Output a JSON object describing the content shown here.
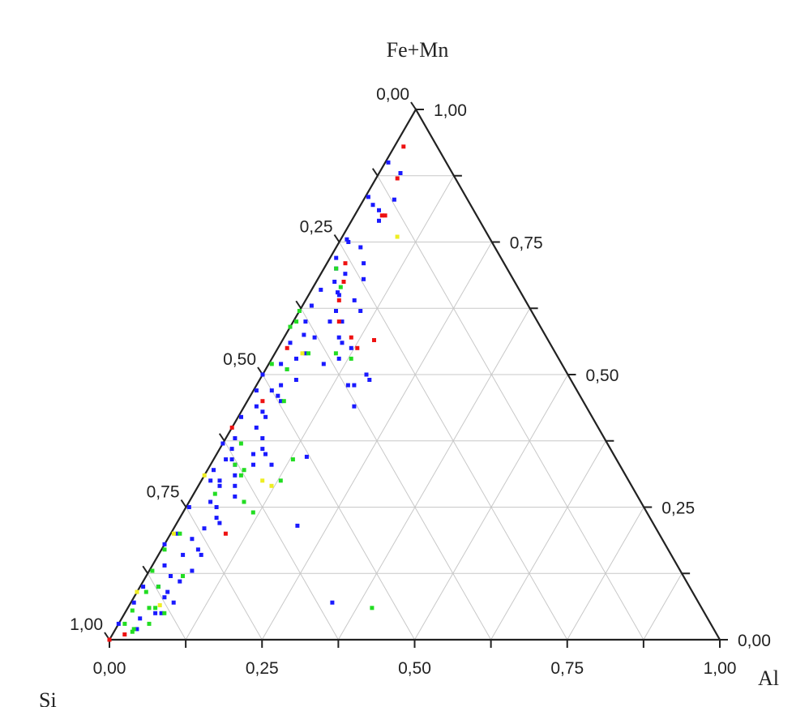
{
  "chart_data": {
    "type": "scatter",
    "subtype": "ternary",
    "grid": true,
    "axis_labels": {
      "top": "Fe+Mn",
      "right": "Al",
      "left": "Si"
    },
    "left_ticks": [
      "0,00",
      "0,25",
      "0,50",
      "0,75",
      "1,00"
    ],
    "right_ticks": [
      "1,00",
      "0,75",
      "0,50",
      "0,25",
      "0,00"
    ],
    "bottom_ticks": [
      "0,00",
      "0,25",
      "0,50",
      "0,75",
      "1,00"
    ],
    "colors": {
      "blue": "#1a1aff",
      "green": "#22dd22",
      "red": "#ee1111",
      "yellow": "#eeee22"
    },
    "series": [
      {
        "color_key": "blue",
        "points": [
          [
            0.005,
            0.9
          ],
          [
            0.035,
            0.88
          ],
          [
            0.005,
            0.835
          ],
          [
            0.01,
            0.755
          ],
          [
            0.01,
            0.72
          ],
          [
            0.02,
            0.7
          ],
          [
            0.015,
            0.66
          ],
          [
            0.015,
            0.63
          ],
          [
            0.02,
            0.6
          ],
          [
            0.015,
            0.56
          ],
          [
            0.005,
            0.47
          ],
          [
            0.045,
            0.46
          ],
          [
            0.02,
            0.44
          ],
          [
            0.005,
            0.42
          ],
          [
            0.04,
            0.4
          ],
          [
            0.0,
            0.37
          ],
          [
            0.06,
            0.35
          ],
          [
            0.01,
            0.32
          ],
          [
            0.03,
            0.3
          ],
          [
            0.005,
            0.25
          ],
          [
            0.06,
            0.23
          ],
          [
            0.0,
            0.18
          ],
          [
            0.04,
            0.16
          ],
          [
            0.02,
            0.14
          ],
          [
            0.04,
            0.12
          ],
          [
            0.005,
            0.07
          ],
          [
            0.03,
            0.04
          ],
          [
            0.0,
            0.03
          ],
          [
            0.05,
            0.05
          ],
          [
            0.035,
            0.02
          ],
          [
            0.005,
            0.1
          ],
          [
            0.05,
            0.08
          ],
          [
            0.015,
            0.3
          ],
          [
            0.015,
            0.75
          ],
          [
            0.05,
            0.65
          ],
          [
            0.06,
            0.62
          ],
          [
            0.05,
            0.57
          ],
          [
            0.02,
            0.52
          ],
          [
            0.035,
            0.43
          ],
          [
            0.0,
            0.5
          ],
          [
            0.04,
            0.48
          ],
          [
            0.01,
            0.2
          ],
          [
            0.035,
            0.26
          ],
          [
            0.05,
            0.21
          ],
          [
            0.015,
            0.38
          ],
          [
            0.04,
            0.33
          ],
          [
            0.03,
            0.34
          ],
          [
            0.02,
            0.36
          ],
          [
            0.05,
            0.83
          ],
          [
            0.045,
            0.79
          ],
          [
            0.035,
            0.81
          ],
          [
            0.02,
            0.82
          ],
          [
            0.04,
            0.74
          ],
          [
            0.06,
            0.71
          ],
          [
            0.04,
            0.69
          ],
          [
            0.075,
            0.68
          ],
          [
            0.03,
            0.675
          ],
          [
            0.045,
            0.655
          ],
          [
            0.08,
            0.64
          ],
          [
            0.06,
            0.6
          ],
          [
            0.08,
            0.6
          ],
          [
            0.03,
            0.575
          ],
          [
            0.05,
            0.54
          ],
          [
            0.04,
            0.53
          ],
          [
            0.035,
            0.51
          ],
          [
            0.06,
            0.49
          ],
          [
            0.03,
            0.47
          ],
          [
            0.055,
            0.45
          ],
          [
            0.045,
            0.42
          ],
          [
            0.06,
            0.38
          ],
          [
            0.07,
            0.36
          ],
          [
            0.07,
            0.33
          ],
          [
            0.05,
            0.31
          ],
          [
            0.06,
            0.29
          ],
          [
            0.07,
            0.27
          ],
          [
            0.05,
            0.25
          ],
          [
            0.07,
            0.22
          ],
          [
            0.04,
            0.19
          ],
          [
            0.06,
            0.17
          ],
          [
            0.07,
            0.16
          ],
          [
            0.07,
            0.13
          ],
          [
            0.06,
            0.11
          ],
          [
            0.05,
            0.09
          ],
          [
            0.07,
            0.07
          ],
          [
            0.06,
            0.05
          ],
          [
            0.03,
            0.1
          ],
          [
            0.1,
            0.62
          ],
          [
            0.09,
            0.57
          ],
          [
            0.1,
            0.56
          ],
          [
            0.12,
            0.55
          ],
          [
            0.11,
            0.53
          ],
          [
            0.17,
            0.5
          ],
          [
            0.16,
            0.48
          ],
          [
            0.18,
            0.44
          ],
          [
            0.18,
            0.49
          ],
          [
            0.15,
            0.48
          ],
          [
            0.15,
            0.345
          ],
          [
            0.2,
            0.215
          ],
          [
            0.33,
            0.07
          ],
          [
            0.02,
            0.34
          ],
          [
            0.035,
            0.29
          ],
          [
            0.09,
            0.52
          ],
          [
            0.08,
            0.35
          ],
          [
            0.1,
            0.33
          ]
        ]
      },
      {
        "color_key": "green",
        "points": [
          [
            0.0,
            0.62
          ],
          [
            0.0,
            0.59
          ],
          [
            0.005,
            0.52
          ],
          [
            0.03,
            0.37
          ],
          [
            0.04,
            0.33
          ],
          [
            0.06,
            0.31
          ],
          [
            0.015,
            0.2
          ],
          [
            0.005,
            0.17
          ],
          [
            0.005,
            0.13
          ],
          [
            0.06,
            0.12
          ],
          [
            0.015,
            0.09
          ],
          [
            0.045,
            0.06
          ],
          [
            0.01,
            0.055
          ],
          [
            0.01,
            0.03
          ],
          [
            0.05,
            0.03
          ],
          [
            0.03,
            0.015
          ],
          [
            0.045,
            0.665
          ],
          [
            0.02,
            0.7
          ],
          [
            0.005,
            0.6
          ],
          [
            0.055,
            0.54
          ],
          [
            0.035,
            0.51
          ],
          [
            0.06,
            0.45
          ],
          [
            0.035,
            0.275
          ],
          [
            0.03,
            0.02
          ],
          [
            0.13,
            0.34
          ],
          [
            0.13,
            0.3
          ],
          [
            0.13,
            0.53
          ],
          [
            0.115,
            0.24
          ],
          [
            0.065,
            0.05
          ],
          [
            0.09,
            0.26
          ],
          [
            0.1,
            0.54
          ],
          [
            0.03,
            0.1
          ],
          [
            0.035,
            0.06
          ],
          [
            0.4,
            0.06
          ],
          [
            0.06,
            0.32
          ]
        ]
      },
      {
        "color_key": "red",
        "points": [
          [
            0.015,
            0.93
          ],
          [
            0.035,
            0.87
          ],
          [
            0.045,
            0.8
          ],
          [
            0.03,
            0.71
          ],
          [
            0.045,
            0.675
          ],
          [
            0.075,
            0.6
          ],
          [
            0.055,
            0.64
          ],
          [
            0.015,
            0.55
          ],
          [
            0.11,
            0.57
          ],
          [
            0.13,
            0.55
          ],
          [
            0.15,
            0.565
          ],
          [
            0.025,
            0.45
          ],
          [
            0.0,
            0.4
          ],
          [
            0.09,
            0.2
          ],
          [
            0.0,
            0.0
          ],
          [
            0.02,
            0.01
          ],
          [
            0.05,
            0.8
          ]
        ]
      },
      {
        "color_key": "yellow",
        "points": [
          [
            0.09,
            0.76
          ],
          [
            0.045,
            0.54
          ],
          [
            0.0,
            0.31
          ],
          [
            0.1,
            0.3
          ],
          [
            0.12,
            0.29
          ],
          [
            0.005,
            0.2
          ],
          [
            0.0,
            0.09
          ],
          [
            0.05,
            0.065
          ]
        ]
      }
    ]
  }
}
